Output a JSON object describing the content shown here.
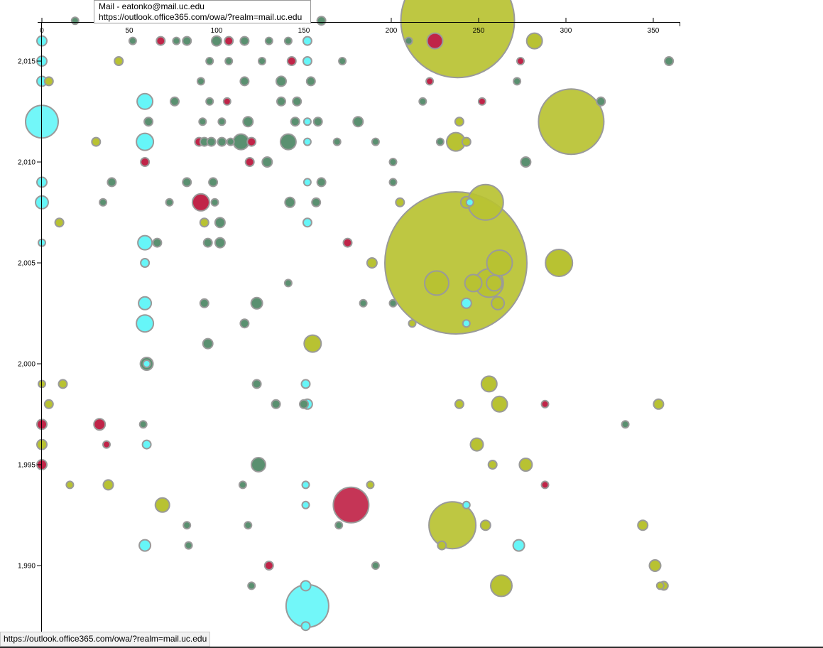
{
  "tooltip": {
    "title": "Mail - eatonko@mail.uc.edu",
    "url": "https://outlook.office365.com/owa/?realm=mail.uc.edu"
  },
  "status_bar": {
    "url": "https://outlook.office365.com/owa/?realm=mail.uc.edu"
  },
  "chart_data": {
    "type": "scatter",
    "title": "",
    "xlabel": "",
    "ylabel": "",
    "xlim": [
      0,
      365
    ],
    "ylim": [
      1987.1,
      2016.6
    ],
    "x_ticks": [
      0,
      50,
      100,
      150,
      200,
      250,
      300,
      350
    ],
    "x_tick_labels": [
      "0",
      "50",
      "100",
      "150",
      "200",
      "250",
      "300",
      "350"
    ],
    "y_ticks": [
      1990,
      1995,
      2000,
      2005,
      2010,
      2015
    ],
    "y_tick_labels": [
      "1,990",
      "1,995",
      "2,000",
      "2,005",
      "2,010",
      "2,015"
    ],
    "grid": false,
    "colors": {
      "green": "#5a9070",
      "olive": "#b8c232",
      "cyan": "#66f6f8",
      "crimson": "#c02448",
      "stroke": "#9a9a9a"
    },
    "points": [
      {
        "x": 19,
        "y": 2017,
        "r": 5,
        "c": "green"
      },
      {
        "x": 160,
        "y": 2017,
        "r": 6,
        "c": "green"
      },
      {
        "x": 238,
        "y": 2017,
        "r": 80,
        "c": "olive"
      },
      {
        "x": 52,
        "y": 2016,
        "r": 5,
        "c": "green"
      },
      {
        "x": 68,
        "y": 2016,
        "r": 6,
        "c": "crimson"
      },
      {
        "x": 77,
        "y": 2016,
        "r": 5,
        "c": "green"
      },
      {
        "x": 83,
        "y": 2016,
        "r": 6,
        "c": "green"
      },
      {
        "x": 100,
        "y": 2016,
        "r": 7,
        "c": "green"
      },
      {
        "x": 107,
        "y": 2016,
        "r": 6,
        "c": "crimson"
      },
      {
        "x": 116,
        "y": 2016,
        "r": 6,
        "c": "green"
      },
      {
        "x": 130,
        "y": 2016,
        "r": 5,
        "c": "green"
      },
      {
        "x": 141,
        "y": 2016,
        "r": 5,
        "c": "green"
      },
      {
        "x": 152,
        "y": 2016,
        "r": 6,
        "c": "cyan"
      },
      {
        "x": 210,
        "y": 2016,
        "r": 5,
        "c": "green"
      },
      {
        "x": 225,
        "y": 2016,
        "r": 11,
        "c": "crimson"
      },
      {
        "x": 282,
        "y": 2016,
        "r": 11,
        "c": "olive"
      },
      {
        "x": 0,
        "y": 2016,
        "r": 7,
        "c": "cyan"
      },
      {
        "x": 0,
        "y": 2015,
        "r": 7,
        "c": "cyan"
      },
      {
        "x": 44,
        "y": 2015,
        "r": 6,
        "c": "olive"
      },
      {
        "x": 96,
        "y": 2015,
        "r": 5,
        "c": "green"
      },
      {
        "x": 107,
        "y": 2015,
        "r": 5,
        "c": "green"
      },
      {
        "x": 126,
        "y": 2015,
        "r": 5,
        "c": "green"
      },
      {
        "x": 143,
        "y": 2015,
        "r": 6,
        "c": "crimson"
      },
      {
        "x": 152,
        "y": 2015,
        "r": 6,
        "c": "cyan"
      },
      {
        "x": 172,
        "y": 2015,
        "r": 5,
        "c": "green"
      },
      {
        "x": 274,
        "y": 2015,
        "r": 5,
        "c": "crimson"
      },
      {
        "x": 359,
        "y": 2015,
        "r": 6,
        "c": "green"
      },
      {
        "x": 0,
        "y": 2014,
        "r": 7,
        "c": "cyan"
      },
      {
        "x": 4,
        "y": 2014,
        "r": 6,
        "c": "olive"
      },
      {
        "x": 91,
        "y": 2014,
        "r": 5,
        "c": "green"
      },
      {
        "x": 116,
        "y": 2014,
        "r": 6,
        "c": "green"
      },
      {
        "x": 137,
        "y": 2014,
        "r": 7,
        "c": "green"
      },
      {
        "x": 154,
        "y": 2014,
        "r": 6,
        "c": "green"
      },
      {
        "x": 222,
        "y": 2014,
        "r": 5,
        "c": "crimson"
      },
      {
        "x": 272,
        "y": 2014,
        "r": 5,
        "c": "green"
      },
      {
        "x": 59,
        "y": 2013,
        "r": 11,
        "c": "cyan"
      },
      {
        "x": 76,
        "y": 2013,
        "r": 6,
        "c": "green"
      },
      {
        "x": 96,
        "y": 2013,
        "r": 5,
        "c": "green"
      },
      {
        "x": 106,
        "y": 2013,
        "r": 5,
        "c": "crimson"
      },
      {
        "x": 137,
        "y": 2013,
        "r": 6,
        "c": "green"
      },
      {
        "x": 146,
        "y": 2013,
        "r": 6,
        "c": "green"
      },
      {
        "x": 218,
        "y": 2013,
        "r": 5,
        "c": "green"
      },
      {
        "x": 252,
        "y": 2013,
        "r": 5,
        "c": "crimson"
      },
      {
        "x": 320,
        "y": 2013,
        "r": 6,
        "c": "green"
      },
      {
        "x": 0,
        "y": 2012,
        "r": 23,
        "c": "cyan"
      },
      {
        "x": 61,
        "y": 2012,
        "r": 6,
        "c": "green"
      },
      {
        "x": 92,
        "y": 2012,
        "r": 5,
        "c": "green"
      },
      {
        "x": 103,
        "y": 2012,
        "r": 5,
        "c": "green"
      },
      {
        "x": 118,
        "y": 2012,
        "r": 7,
        "c": "green"
      },
      {
        "x": 145,
        "y": 2012,
        "r": 6,
        "c": "green"
      },
      {
        "x": 152,
        "y": 2012,
        "r": 5,
        "c": "cyan"
      },
      {
        "x": 158,
        "y": 2012,
        "r": 6,
        "c": "green"
      },
      {
        "x": 181,
        "y": 2012,
        "r": 7,
        "c": "green"
      },
      {
        "x": 239,
        "y": 2012,
        "r": 6,
        "c": "olive"
      },
      {
        "x": 303,
        "y": 2012,
        "r": 46,
        "c": "olive"
      },
      {
        "x": 31,
        "y": 2011,
        "r": 6,
        "c": "olive"
      },
      {
        "x": 59,
        "y": 2011,
        "r": 12,
        "c": "cyan"
      },
      {
        "x": 90,
        "y": 2011,
        "r": 6,
        "c": "crimson"
      },
      {
        "x": 93,
        "y": 2011,
        "r": 6,
        "c": "green"
      },
      {
        "x": 97,
        "y": 2011,
        "r": 6,
        "c": "green"
      },
      {
        "x": 103,
        "y": 2011,
        "r": 6,
        "c": "green"
      },
      {
        "x": 108,
        "y": 2011,
        "r": 5,
        "c": "green"
      },
      {
        "x": 114,
        "y": 2011,
        "r": 11,
        "c": "green"
      },
      {
        "x": 120,
        "y": 2011,
        "r": 6,
        "c": "crimson"
      },
      {
        "x": 141,
        "y": 2011,
        "r": 11,
        "c": "green"
      },
      {
        "x": 152,
        "y": 2011,
        "r": 5,
        "c": "cyan"
      },
      {
        "x": 169,
        "y": 2011,
        "r": 5,
        "c": "green"
      },
      {
        "x": 191,
        "y": 2011,
        "r": 5,
        "c": "green"
      },
      {
        "x": 228,
        "y": 2011,
        "r": 5,
        "c": "green"
      },
      {
        "x": 237,
        "y": 2011,
        "r": 13,
        "c": "olive"
      },
      {
        "x": 243,
        "y": 2011,
        "r": 6,
        "c": "olive"
      },
      {
        "x": 59,
        "y": 2010,
        "r": 6,
        "c": "crimson"
      },
      {
        "x": 119,
        "y": 2010,
        "r": 6,
        "c": "crimson"
      },
      {
        "x": 129,
        "y": 2010,
        "r": 7,
        "c": "green"
      },
      {
        "x": 201,
        "y": 2010,
        "r": 5,
        "c": "green"
      },
      {
        "x": 277,
        "y": 2010,
        "r": 7,
        "c": "green"
      },
      {
        "x": 0,
        "y": 2009,
        "r": 7,
        "c": "cyan"
      },
      {
        "x": 40,
        "y": 2009,
        "r": 6,
        "c": "green"
      },
      {
        "x": 83,
        "y": 2009,
        "r": 6,
        "c": "green"
      },
      {
        "x": 98,
        "y": 2009,
        "r": 6,
        "c": "green"
      },
      {
        "x": 152,
        "y": 2009,
        "r": 5,
        "c": "cyan"
      },
      {
        "x": 160,
        "y": 2009,
        "r": 6,
        "c": "green"
      },
      {
        "x": 201,
        "y": 2009,
        "r": 5,
        "c": "green"
      },
      {
        "x": 0,
        "y": 2008,
        "r": 9,
        "c": "cyan"
      },
      {
        "x": 35,
        "y": 2008,
        "r": 5,
        "c": "green"
      },
      {
        "x": 73,
        "y": 2008,
        "r": 5,
        "c": "green"
      },
      {
        "x": 91,
        "y": 2008,
        "r": 12,
        "c": "crimson"
      },
      {
        "x": 99,
        "y": 2008,
        "r": 5,
        "c": "green"
      },
      {
        "x": 142,
        "y": 2008,
        "r": 7,
        "c": "green"
      },
      {
        "x": 157,
        "y": 2008,
        "r": 6,
        "c": "green"
      },
      {
        "x": 205,
        "y": 2008,
        "r": 6,
        "c": "olive"
      },
      {
        "x": 243,
        "y": 2008,
        "r": 8,
        "c": "olive"
      },
      {
        "x": 254,
        "y": 2008,
        "r": 25,
        "c": "olive"
      },
      {
        "x": 245,
        "y": 2008,
        "r": 5,
        "c": "cyan"
      },
      {
        "x": 10,
        "y": 2007,
        "r": 6,
        "c": "olive"
      },
      {
        "x": 93,
        "y": 2007,
        "r": 6,
        "c": "olive"
      },
      {
        "x": 102,
        "y": 2007,
        "r": 7,
        "c": "green"
      },
      {
        "x": 152,
        "y": 2007,
        "r": 6,
        "c": "cyan"
      },
      {
        "x": 0,
        "y": 2006,
        "r": 5,
        "c": "cyan"
      },
      {
        "x": 59,
        "y": 2006,
        "r": 10,
        "c": "cyan"
      },
      {
        "x": 66,
        "y": 2006,
        "r": 6,
        "c": "green"
      },
      {
        "x": 95,
        "y": 2006,
        "r": 6,
        "c": "green"
      },
      {
        "x": 102,
        "y": 2006,
        "r": 7,
        "c": "green"
      },
      {
        "x": 175,
        "y": 2006,
        "r": 6,
        "c": "crimson"
      },
      {
        "x": 237,
        "y": 2005,
        "r": 100,
        "c": "olive"
      },
      {
        "x": 59,
        "y": 2005,
        "r": 6,
        "c": "cyan"
      },
      {
        "x": 189,
        "y": 2005,
        "r": 7,
        "c": "olive"
      },
      {
        "x": 262,
        "y": 2005,
        "r": 18,
        "c": "olive"
      },
      {
        "x": 296,
        "y": 2005,
        "r": 19,
        "c": "olive"
      },
      {
        "x": 141,
        "y": 2004,
        "r": 5,
        "c": "green"
      },
      {
        "x": 226,
        "y": 2004,
        "r": 17,
        "c": "olive"
      },
      {
        "x": 247,
        "y": 2004,
        "r": 12,
        "c": "olive"
      },
      {
        "x": 256,
        "y": 2004,
        "r": 20,
        "c": "olive"
      },
      {
        "x": 259,
        "y": 2004,
        "r": 11,
        "c": "olive"
      },
      {
        "x": 59,
        "y": 2003,
        "r": 9,
        "c": "cyan"
      },
      {
        "x": 93,
        "y": 2003,
        "r": 6,
        "c": "green"
      },
      {
        "x": 123,
        "y": 2003,
        "r": 8,
        "c": "green"
      },
      {
        "x": 184,
        "y": 2003,
        "r": 5,
        "c": "green"
      },
      {
        "x": 201,
        "y": 2003,
        "r": 5,
        "c": "green"
      },
      {
        "x": 243,
        "y": 2003,
        "r": 7,
        "c": "cyan"
      },
      {
        "x": 261,
        "y": 2003,
        "r": 9,
        "c": "olive"
      },
      {
        "x": 59,
        "y": 2002,
        "r": 12,
        "c": "cyan"
      },
      {
        "x": 116,
        "y": 2002,
        "r": 6,
        "c": "green"
      },
      {
        "x": 212,
        "y": 2002,
        "r": 5,
        "c": "olive"
      },
      {
        "x": 243,
        "y": 2002,
        "r": 5,
        "c": "cyan"
      },
      {
        "x": 95,
        "y": 2001,
        "r": 7,
        "c": "green"
      },
      {
        "x": 155,
        "y": 2001,
        "r": 12,
        "c": "olive"
      },
      {
        "x": 60,
        "y": 2000,
        "r": 9,
        "c": "green"
      },
      {
        "x": 60,
        "y": 2000,
        "r": 5,
        "c": "cyan"
      },
      {
        "x": 0,
        "y": 1999,
        "r": 5,
        "c": "olive"
      },
      {
        "x": 12,
        "y": 1999,
        "r": 6,
        "c": "olive"
      },
      {
        "x": 123,
        "y": 1999,
        "r": 6,
        "c": "green"
      },
      {
        "x": 151,
        "y": 1999,
        "r": 6,
        "c": "cyan"
      },
      {
        "x": 256,
        "y": 1999,
        "r": 11,
        "c": "olive"
      },
      {
        "x": 4,
        "y": 1998,
        "r": 6,
        "c": "olive"
      },
      {
        "x": 134,
        "y": 1998,
        "r": 6,
        "c": "green"
      },
      {
        "x": 150,
        "y": 1998,
        "r": 6,
        "c": "green"
      },
      {
        "x": 152,
        "y": 1998,
        "r": 7,
        "c": "cyan"
      },
      {
        "x": 239,
        "y": 1998,
        "r": 6,
        "c": "olive"
      },
      {
        "x": 262,
        "y": 1998,
        "r": 11,
        "c": "olive"
      },
      {
        "x": 288,
        "y": 1998,
        "r": 5,
        "c": "crimson"
      },
      {
        "x": 353,
        "y": 1998,
        "r": 7,
        "c": "olive"
      },
      {
        "x": 0,
        "y": 1997,
        "r": 7,
        "c": "crimson"
      },
      {
        "x": 33,
        "y": 1997,
        "r": 8,
        "c": "crimson"
      },
      {
        "x": 58,
        "y": 1997,
        "r": 5,
        "c": "green"
      },
      {
        "x": 334,
        "y": 1997,
        "r": 5,
        "c": "green"
      },
      {
        "x": 0,
        "y": 1996,
        "r": 7,
        "c": "olive"
      },
      {
        "x": 37,
        "y": 1996,
        "r": 5,
        "c": "crimson"
      },
      {
        "x": 60,
        "y": 1996,
        "r": 6,
        "c": "cyan"
      },
      {
        "x": 249,
        "y": 1996,
        "r": 9,
        "c": "olive"
      },
      {
        "x": 0,
        "y": 1995,
        "r": 7,
        "c": "crimson"
      },
      {
        "x": 124,
        "y": 1995,
        "r": 10,
        "c": "green"
      },
      {
        "x": 258,
        "y": 1995,
        "r": 6,
        "c": "olive"
      },
      {
        "x": 277,
        "y": 1995,
        "r": 9,
        "c": "olive"
      },
      {
        "x": 16,
        "y": 1994,
        "r": 5,
        "c": "olive"
      },
      {
        "x": 38,
        "y": 1994,
        "r": 7,
        "c": "olive"
      },
      {
        "x": 115,
        "y": 1994,
        "r": 5,
        "c": "green"
      },
      {
        "x": 151,
        "y": 1994,
        "r": 5,
        "c": "cyan"
      },
      {
        "x": 188,
        "y": 1994,
        "r": 5,
        "c": "olive"
      },
      {
        "x": 288,
        "y": 1994,
        "r": 5,
        "c": "crimson"
      },
      {
        "x": 69,
        "y": 1993,
        "r": 10,
        "c": "olive"
      },
      {
        "x": 151,
        "y": 1993,
        "r": 5,
        "c": "cyan"
      },
      {
        "x": 177,
        "y": 1993,
        "r": 25,
        "c": "crimson"
      },
      {
        "x": 243,
        "y": 1993,
        "r": 5,
        "c": "cyan"
      },
      {
        "x": 83,
        "y": 1992,
        "r": 5,
        "c": "green"
      },
      {
        "x": 118,
        "y": 1992,
        "r": 5,
        "c": "green"
      },
      {
        "x": 170,
        "y": 1992,
        "r": 5,
        "c": "green"
      },
      {
        "x": 235,
        "y": 1992,
        "r": 33,
        "c": "olive"
      },
      {
        "x": 254,
        "y": 1992,
        "r": 7,
        "c": "olive"
      },
      {
        "x": 344,
        "y": 1992,
        "r": 7,
        "c": "olive"
      },
      {
        "x": 59,
        "y": 1991,
        "r": 8,
        "c": "cyan"
      },
      {
        "x": 84,
        "y": 1991,
        "r": 5,
        "c": "green"
      },
      {
        "x": 229,
        "y": 1991,
        "r": 6,
        "c": "olive"
      },
      {
        "x": 273,
        "y": 1991,
        "r": 8,
        "c": "cyan"
      },
      {
        "x": 130,
        "y": 1990,
        "r": 6,
        "c": "crimson"
      },
      {
        "x": 191,
        "y": 1990,
        "r": 5,
        "c": "green"
      },
      {
        "x": 351,
        "y": 1990,
        "r": 8,
        "c": "olive"
      },
      {
        "x": 120,
        "y": 1989,
        "r": 5,
        "c": "green"
      },
      {
        "x": 151,
        "y": 1989,
        "r": 7,
        "c": "cyan"
      },
      {
        "x": 263,
        "y": 1989,
        "r": 15,
        "c": "olive"
      },
      {
        "x": 354,
        "y": 1989,
        "r": 5,
        "c": "olive"
      },
      {
        "x": 356,
        "y": 1989,
        "r": 6,
        "c": "olive"
      },
      {
        "x": 152,
        "y": 1988,
        "r": 30,
        "c": "cyan"
      },
      {
        "x": 151,
        "y": 1987,
        "r": 6,
        "c": "cyan"
      }
    ]
  }
}
